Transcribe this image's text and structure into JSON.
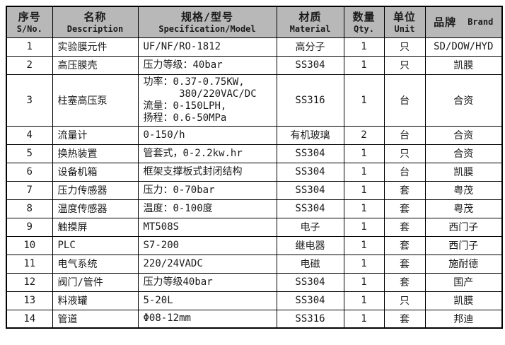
{
  "colors": {
    "header_bg": "#b8b8b8",
    "border": "#000000",
    "page_bg": "#ffffff"
  },
  "table": {
    "columns": [
      {
        "key": "sno",
        "zh": "序号",
        "en": "S/No.",
        "inline": false,
        "width": 65
      },
      {
        "key": "description",
        "zh": "名称",
        "en": "Description",
        "inline": false,
        "width": 121
      },
      {
        "key": "spec",
        "zh": "规格/型号",
        "en": "Specification/Model",
        "inline": false,
        "width": 196
      },
      {
        "key": "material",
        "zh": "材质",
        "en": "Material",
        "inline": false,
        "width": 95
      },
      {
        "key": "qty",
        "zh": "数量",
        "en": "Qty.",
        "inline": false,
        "width": 57
      },
      {
        "key": "unit",
        "zh": "单位",
        "en": "Unit",
        "inline": false,
        "width": 58
      },
      {
        "key": "brand",
        "zh": "品牌",
        "en": "Brand",
        "inline": true,
        "width": 109
      }
    ],
    "col_align": [
      "center",
      "left",
      "left",
      "center",
      "center",
      "center",
      "center"
    ],
    "rows": [
      [
        "1",
        "实验膜元件",
        "UF/NF/RO-1812",
        "高分子",
        "1",
        "只",
        "SD/DOW/HYD"
      ],
      [
        "2",
        "高压膜壳",
        "压力等级：40bar",
        "SS304",
        "1",
        "只",
        "凯膜"
      ],
      [
        "3",
        "柱塞高压泵",
        "功率：0.37-0.75KW,\n      380/220VAC/DC\n流量：0-150LPH,\n扬程：0.6-50MPa",
        "SS316",
        "1",
        "台",
        "合资"
      ],
      [
        "4",
        "流量计",
        "0-150/h",
        "有机玻璃",
        "2",
        "台",
        "合资"
      ],
      [
        "5",
        "换热装置",
        "管套式，0-2.2kw.hr",
        "SS304",
        "1",
        "只",
        "合资"
      ],
      [
        "6",
        "设备机箱",
        "框架支撑板式封闭结构",
        "SS304",
        "1",
        "台",
        "凯膜"
      ],
      [
        "7",
        "压力传感器",
        "压力：0-70bar",
        "SS304",
        "1",
        "套",
        "粤茂"
      ],
      [
        "8",
        "温度传感器",
        "温度：0-100度",
        "SS304",
        "1",
        "套",
        "粤茂"
      ],
      [
        "9",
        "触摸屏",
        "MT508S",
        "电子",
        "1",
        "套",
        "西门子"
      ],
      [
        "10",
        "PLC",
        "S7-200",
        "继电器",
        "1",
        "套",
        "西门子"
      ],
      [
        "11",
        "电气系统",
        "220/24VADC",
        "电磁",
        "1",
        "套",
        "施耐德"
      ],
      [
        "12",
        "阀门/管件",
        "压力等级40bar",
        "SS304",
        "1",
        "套",
        "国产"
      ],
      [
        "13",
        "料液罐",
        "5-20L",
        "SS304",
        "1",
        "只",
        "凯膜"
      ],
      [
        "14",
        "管道",
        "Φ08-12mm",
        "SS316",
        "1",
        "套",
        "邦迪"
      ]
    ]
  }
}
